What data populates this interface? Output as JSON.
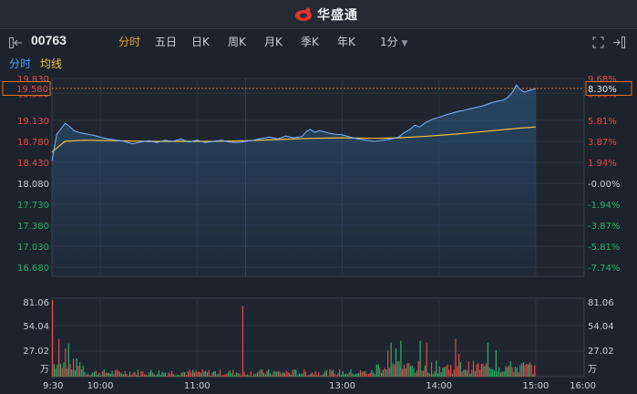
{
  "header": {
    "brand": "华盛通",
    "brand_color": "#e2332c"
  },
  "toolbar": {
    "stock_code": "00763",
    "tabs": [
      {
        "label": "分时",
        "active": true
      },
      {
        "label": "五日"
      },
      {
        "label": "日K"
      },
      {
        "label": "周K"
      },
      {
        "label": "月K"
      },
      {
        "label": "季K"
      },
      {
        "label": "年K"
      },
      {
        "label": "1分"
      }
    ],
    "icons": [
      "fullscreen-icon",
      "exit-icon"
    ]
  },
  "subtabs": {
    "minute_label": "分时",
    "avg_label": "均线",
    "minute_color": "#4aa3ff",
    "avg_color": "#f0c040"
  },
  "colors": {
    "up": "#e84a4a",
    "down": "#26b36b",
    "price_line": "#7db6ff",
    "avg_line": "#f0c040",
    "crosshair_box": "#e07020"
  },
  "chart_data": {
    "type": "line",
    "price_ticks": [
      "19.830",
      "19.580",
      "19.130",
      "18.780",
      "18.430",
      "18.080",
      "17.730",
      "17.380",
      "17.030",
      "16.680"
    ],
    "pct_ticks": [
      "9.68%",
      "8.30%",
      "5.81%",
      "3.87%",
      "1.94%",
      "-0.00%",
      "-1.94%",
      "-3.87%",
      "-5.81%",
      "-7.74%"
    ],
    "crosshair_price": "19.580",
    "crosshair_pct": "8.30%",
    "volume_ticks": [
      "81.06",
      "54.04",
      "27.02"
    ],
    "volume_unit": "万",
    "time_labels": [
      "9:30",
      "10:00",
      "11:00",
      "13:00",
      "14:00",
      "15:00",
      "16:00"
    ],
    "ylim": [
      16.5,
      19.9
    ],
    "prev_close": 18.08,
    "series": [
      {
        "values": [
          [
            0,
            18.45
          ],
          [
            3,
            18.9
          ],
          [
            6,
            19.0
          ],
          [
            8,
            19.08
          ],
          [
            10,
            19.05
          ],
          [
            14,
            18.95
          ],
          [
            18,
            18.92
          ],
          [
            22,
            18.9
          ],
          [
            26,
            18.88
          ],
          [
            30,
            18.85
          ],
          [
            35,
            18.82
          ],
          [
            40,
            18.8
          ],
          [
            45,
            18.78
          ],
          [
            50,
            18.74
          ],
          [
            55,
            18.77
          ],
          [
            60,
            18.79
          ],
          [
            65,
            18.76
          ],
          [
            70,
            18.8
          ],
          [
            75,
            18.78
          ],
          [
            80,
            18.82
          ],
          [
            85,
            18.77
          ],
          [
            90,
            18.8
          ],
          [
            95,
            18.76
          ],
          [
            100,
            18.78
          ],
          [
            105,
            18.8
          ],
          [
            110,
            18.77
          ],
          [
            115,
            18.76
          ],
          [
            120,
            18.78
          ],
          [
            125,
            18.8
          ],
          [
            130,
            18.83
          ],
          [
            135,
            18.85
          ],
          [
            140,
            18.82
          ],
          [
            145,
            18.87
          ],
          [
            150,
            18.84
          ],
          [
            155,
            18.86
          ],
          [
            158,
            18.95
          ],
          [
            160,
            18.98
          ],
          [
            163,
            18.93
          ],
          [
            166,
            18.96
          ],
          [
            170,
            18.93
          ],
          [
            175,
            18.9
          ],
          [
            180,
            18.89
          ],
          [
            185,
            18.85
          ],
          [
            190,
            18.82
          ],
          [
            195,
            18.8
          ],
          [
            200,
            18.78
          ],
          [
            205,
            18.8
          ],
          [
            210,
            18.82
          ],
          [
            215,
            18.85
          ],
          [
            218,
            18.92
          ],
          [
            222,
            18.98
          ],
          [
            225,
            19.05
          ],
          [
            228,
            19.02
          ],
          [
            232,
            19.1
          ],
          [
            236,
            19.15
          ],
          [
            240,
            19.18
          ],
          [
            244,
            19.22
          ],
          [
            248,
            19.25
          ],
          [
            252,
            19.28
          ],
          [
            256,
            19.3
          ],
          [
            260,
            19.33
          ],
          [
            264,
            19.35
          ],
          [
            268,
            19.38
          ],
          [
            272,
            19.42
          ],
          [
            276,
            19.45
          ],
          [
            280,
            19.47
          ],
          [
            283,
            19.52
          ],
          [
            286,
            19.62
          ],
          [
            288,
            19.72
          ],
          [
            290,
            19.65
          ],
          [
            293,
            19.6
          ],
          [
            296,
            19.63
          ],
          [
            300,
            19.66
          ]
        ]
      },
      {
        "values": [
          [
            0,
            18.6
          ],
          [
            8,
            18.78
          ],
          [
            20,
            18.8
          ],
          [
            40,
            18.79
          ],
          [
            60,
            18.78
          ],
          [
            80,
            18.78
          ],
          [
            100,
            18.78
          ],
          [
            120,
            18.79
          ],
          [
            140,
            18.81
          ],
          [
            160,
            18.83
          ],
          [
            180,
            18.84
          ],
          [
            200,
            18.83
          ],
          [
            215,
            18.84
          ],
          [
            230,
            18.86
          ],
          [
            250,
            18.9
          ],
          [
            270,
            18.95
          ],
          [
            290,
            19.0
          ],
          [
            300,
            19.02
          ]
        ]
      }
    ],
    "volume_max": 81.06
  }
}
